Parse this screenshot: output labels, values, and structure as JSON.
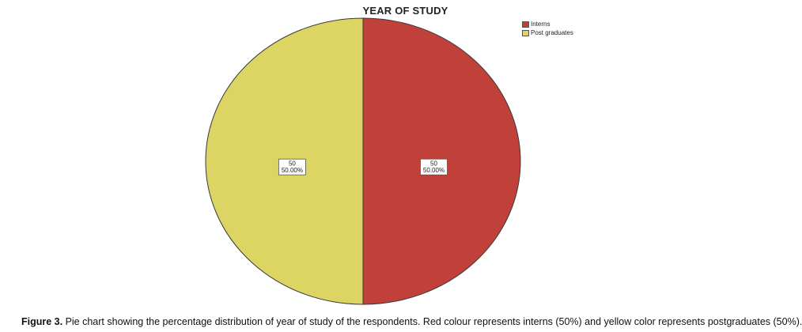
{
  "chart_data": {
    "type": "pie",
    "title": "YEAR OF STUDY",
    "categories": [
      "Interns",
      "Post graduates"
    ],
    "values": [
      50,
      50
    ],
    "percentages": [
      "50.00%",
      "50.00%"
    ],
    "value_labels": [
      "50",
      "50"
    ],
    "colors": [
      "#c0403a",
      "#dcd463"
    ],
    "legend_position": "top-right"
  },
  "caption": {
    "label": "Figure 3.",
    "text": " Pie chart showing the percentage distribution of year of study of the respondents. Red colour represents interns (50%) and yellow color represents postgraduates (50%)."
  }
}
